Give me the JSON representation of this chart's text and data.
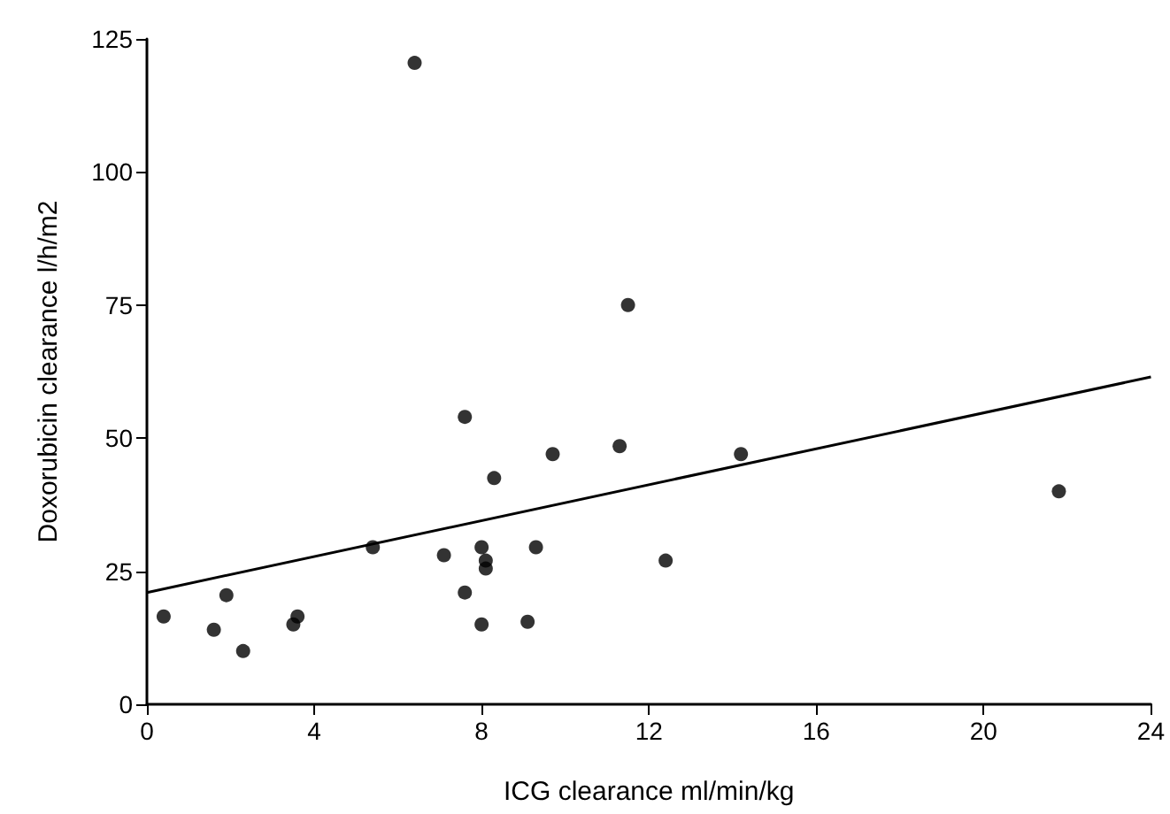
{
  "chart_data": {
    "type": "scatter",
    "xlabel": "ICG clearance ml/min/kg",
    "ylabel": "Doxorubicin clearance l/h/m2",
    "x": [
      0.4,
      1.6,
      1.9,
      2.3,
      3.5,
      3.6,
      5.4,
      6.4,
      7.1,
      7.6,
      7.6,
      8.0,
      8.0,
      8.1,
      8.1,
      8.3,
      9.1,
      9.3,
      9.7,
      11.3,
      11.5,
      12.4,
      14.2,
      21.8
    ],
    "series": [
      {
        "color": "#000000",
        "marker": "circle",
        "values": [
          16.5,
          14,
          20.5,
          10,
          15,
          16.5,
          29.5,
          120.5,
          28,
          54,
          21,
          15,
          29.5,
          27,
          25.5,
          42.5,
          15.5,
          29.5,
          47,
          48.5,
          75,
          27,
          47,
          40
        ]
      },
      {
        "type": "line",
        "color": "#000000",
        "marker": "none",
        "line_style": "solid",
        "x": [
          0,
          24
        ],
        "values": [
          21,
          61.5
        ]
      }
    ],
    "xlim": [
      0,
      24
    ],
    "xticks": [
      0,
      4,
      8,
      12,
      16,
      20,
      24
    ],
    "ylim": [
      0,
      125
    ],
    "yticks": [
      0,
      25,
      50,
      75,
      100,
      125
    ],
    "grid": false
  }
}
